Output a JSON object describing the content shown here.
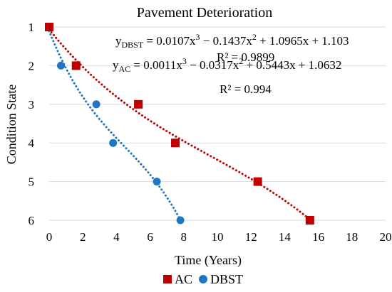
{
  "chart_data": {
    "type": "scatter",
    "title": "Pavement Deterioration",
    "xlabel": "Time (Years)",
    "ylabel": "Condition State",
    "xlim": [
      0,
      20
    ],
    "ylim": [
      1,
      6
    ],
    "y_axis_inverted": true,
    "xticks": [
      0,
      2,
      4,
      6,
      8,
      10,
      12,
      14,
      16,
      18,
      20
    ],
    "yticks": [
      1,
      2,
      3,
      4,
      5,
      6
    ],
    "grid": "horizontal",
    "legend_position": "bottom",
    "series": [
      {
        "name": "AC",
        "marker": "square",
        "color": "#c00000",
        "x": [
          0,
          1.6,
          5.3,
          7.5,
          12.4,
          15.5
        ],
        "y": [
          1,
          2,
          3,
          4,
          5,
          6
        ],
        "trendline": {
          "type": "polynomial-3",
          "style": "dotted",
          "coefficients": [
            0.0011,
            -0.0317,
            0.5443,
            1.0632
          ],
          "x_range": [
            0,
            15.5
          ],
          "equation_lines": [
            "y",
            "AC",
            " = 0.0011x",
            "3",
            " − 0.0317x",
            "2",
            " + 0.5443x + 1.0632"
          ],
          "r_squared_label": "R² = 0.994"
        }
      },
      {
        "name": "DBST",
        "marker": "circle",
        "color": "#1f77c4",
        "x": [
          0,
          0.7,
          2.8,
          3.8,
          6.4,
          7.8
        ],
        "y": [
          1,
          2,
          3,
          4,
          5,
          6
        ],
        "trendline": {
          "type": "polynomial-3",
          "style": "dotted",
          "coefficients": [
            0.0107,
            -0.1437,
            1.0965,
            1.103
          ],
          "x_range": [
            0,
            7.8
          ],
          "equation_lines": [
            "y",
            "DBST",
            " = 0.0107x",
            "3",
            " − 0.1437x",
            "2",
            " + 1.0965x + 1.103"
          ],
          "r_squared_label": "R² = 0.9899"
        }
      }
    ]
  }
}
